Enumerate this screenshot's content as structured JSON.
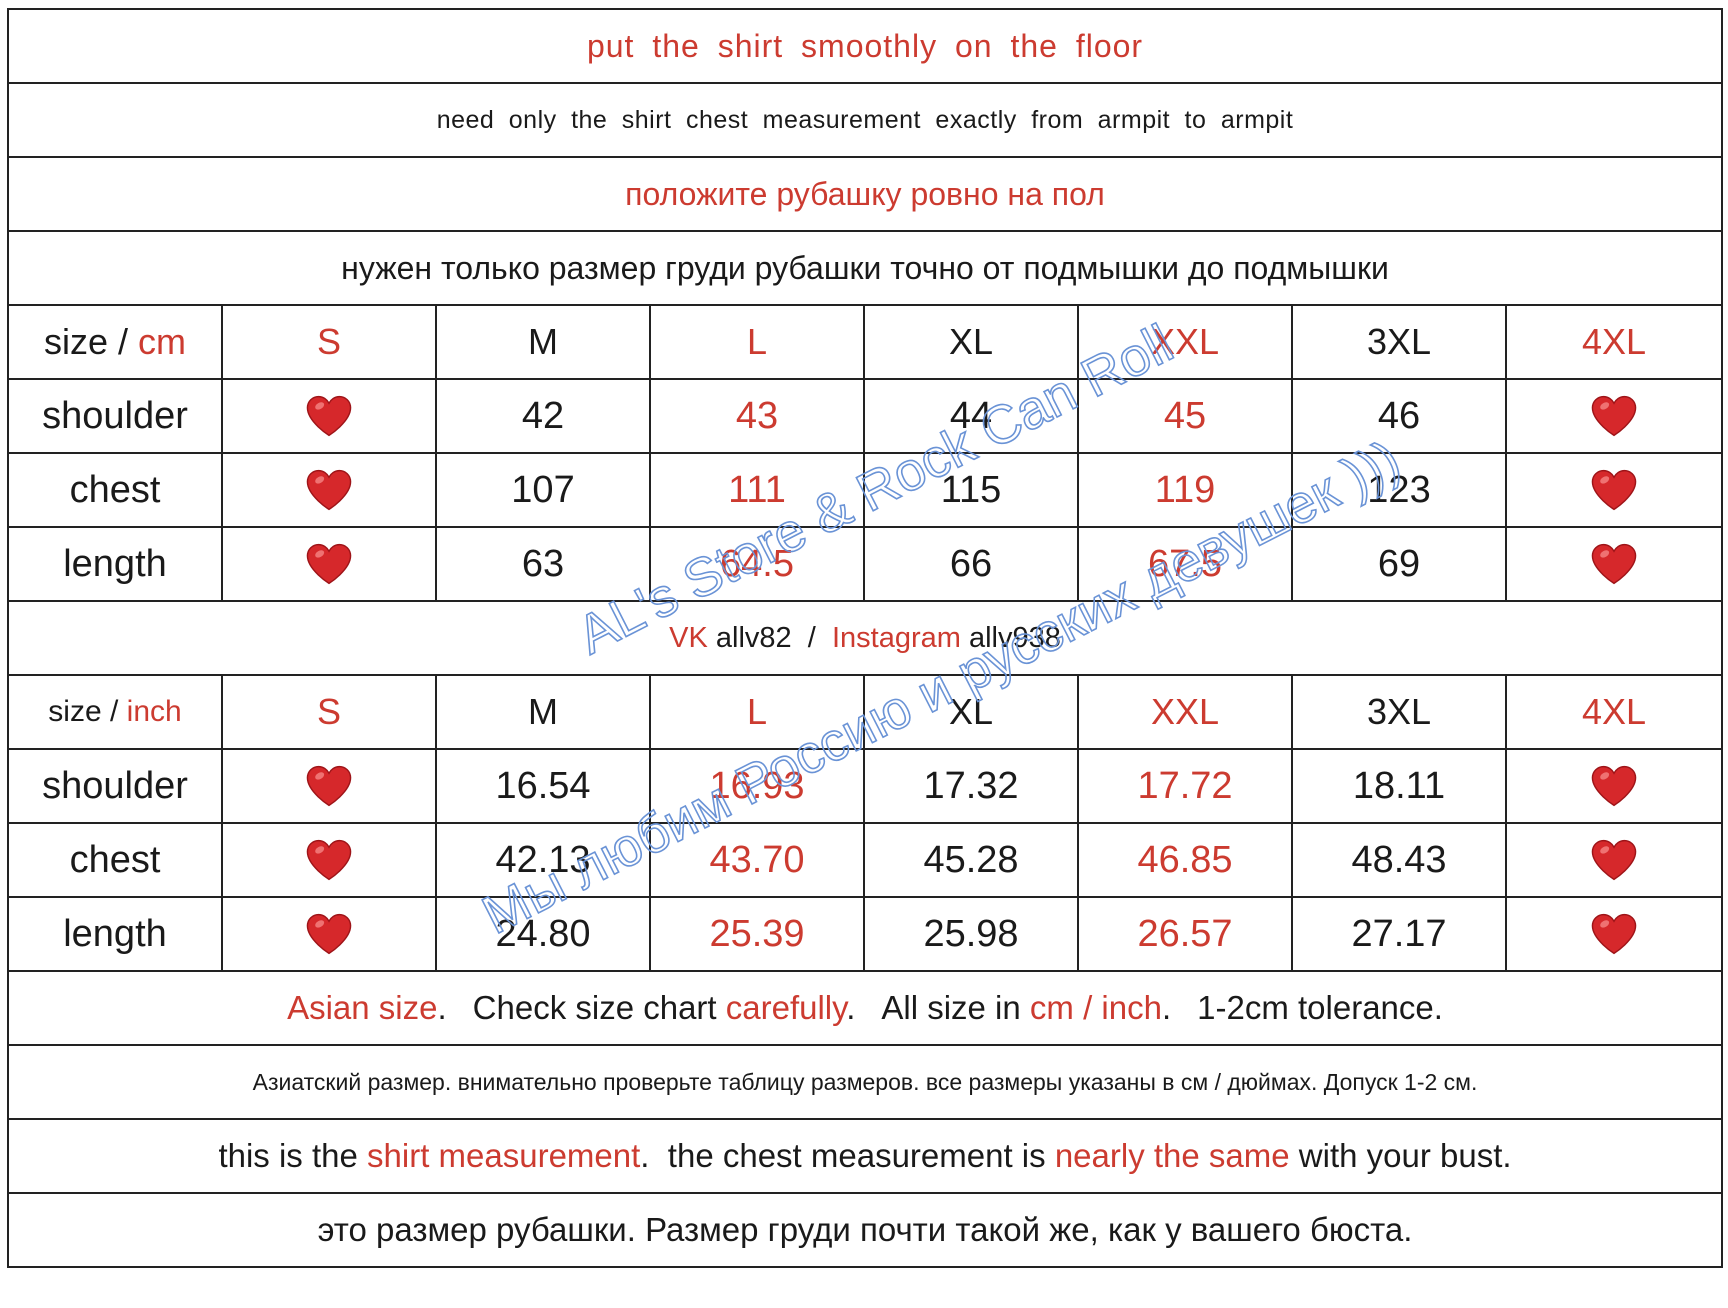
{
  "header": {
    "line1": "put  the  shirt  smoothly  on  the  floor",
    "line2": "need  only  the  shirt  chest  measurement  exactly  from  armpit  to  armpit",
    "line3": "положите рубашку ровно на пол",
    "line4": "нужен только размер груди рубашки точно от подмышки до подмышки"
  },
  "cm_table": {
    "header_prefix": "size / ",
    "header_unit": "cm",
    "sizes": [
      "S",
      "M",
      "L",
      "XL",
      "XXL",
      "3XL",
      "4XL"
    ],
    "rows": [
      {
        "label": "shoulder",
        "values": [
          "42",
          "43",
          "44",
          "45",
          "46"
        ]
      },
      {
        "label": "chest",
        "values": [
          "107",
          "111",
          "115",
          "119",
          "123"
        ]
      },
      {
        "label": "length",
        "values": [
          "63",
          "64.5",
          "66",
          "67.5",
          "69"
        ]
      }
    ]
  },
  "contact": {
    "vk_label": "VK",
    "vk_value": " allv82  /  ",
    "ig_label": "Instagram",
    "ig_value": " allv938"
  },
  "inch_table": {
    "header_prefix": "size / ",
    "header_unit": "inch",
    "sizes": [
      "S",
      "M",
      "L",
      "XL",
      "XXL",
      "3XL",
      "4XL"
    ],
    "rows": [
      {
        "label": "shoulder",
        "values": [
          "16.54",
          "16.93",
          "17.32",
          "17.72",
          "18.11"
        ]
      },
      {
        "label": "chest",
        "values": [
          "42.13",
          "43.70",
          "45.28",
          "46.85",
          "48.43"
        ]
      },
      {
        "label": "length",
        "values": [
          "24.80",
          "25.39",
          "25.98",
          "26.57",
          "27.17"
        ]
      }
    ]
  },
  "notes": {
    "asian": "Asian size",
    "dot1": ".",
    "check": "Check size chart ",
    "carefully": "carefully",
    "dot2": ".",
    "allsize": "All size in ",
    "units": "cm / inch",
    "dot3": ".",
    "tolerance": "1-2cm tolerance.",
    "ru_notice": "Азиатский размер. внимательно проверьте таблицу размеров. все размеры указаны в см / дюймах. Допуск 1-2 см.",
    "m1": "this is the ",
    "m2": "shirt measurement",
    "m3": ".  the chest measurement is ",
    "m4": "nearly the same",
    "m5": " with your bust.",
    "ru_last": "это размер рубашки. Размер груди почти такой же, как у вашего бюста."
  },
  "watermark": {
    "line1": "AL's Store & Rock Can Roll",
    "line2": "Мы любим Россию и русских девушек )))"
  },
  "colors": {
    "accent_red": "#cc3b30",
    "heart": "#d6282b",
    "watermark_blue": "#6a93d6"
  },
  "icons": {
    "unavailable_size": "heart-icon"
  }
}
